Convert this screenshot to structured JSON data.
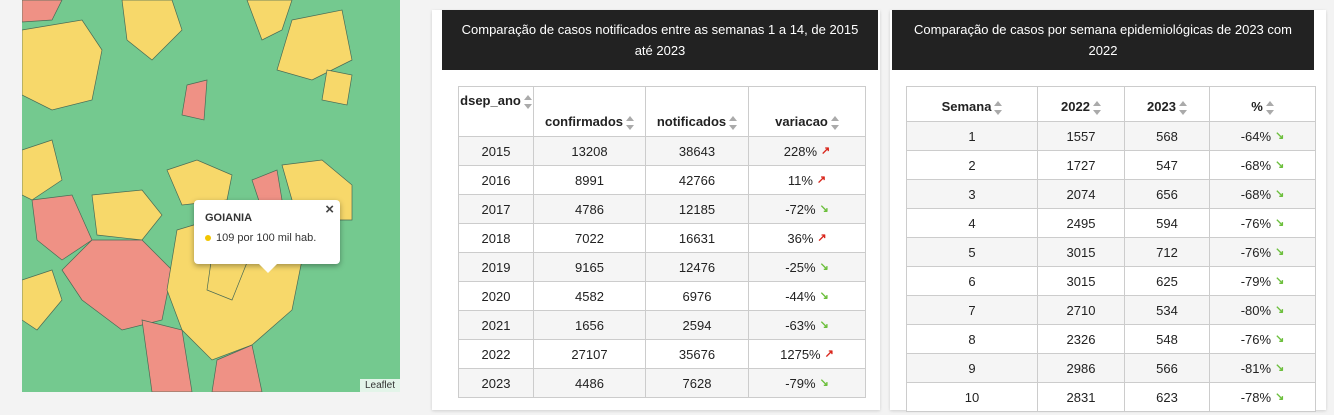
{
  "map": {
    "popup": {
      "title": "GOIANIA",
      "text": "109 por 100 mil hab."
    },
    "attribution": "Leaflet"
  },
  "table1": {
    "title": "Comparação de casos notificados entre as semanas 1 a 14, de 2015 até 2023",
    "headers": [
      "dsep_ano",
      "confirmados",
      "notificados",
      "variacao"
    ],
    "rows": [
      [
        2015,
        13208,
        38643,
        "228%"
      ],
      [
        2016,
        8991,
        42766,
        "11%"
      ],
      [
        2017,
        4786,
        12185,
        "-72%"
      ],
      [
        2018,
        7022,
        16631,
        "36%"
      ],
      [
        2019,
        9165,
        12476,
        "-25%"
      ],
      [
        2020,
        4582,
        6976,
        "-44%"
      ],
      [
        2021,
        1656,
        2594,
        "-63%"
      ],
      [
        2022,
        27107,
        35676,
        "1275%"
      ],
      [
        2023,
        4486,
        7628,
        "-79%"
      ]
    ]
  },
  "table2": {
    "title": "Comparação de casos por semana epidemiológicas de 2023 com 2022",
    "headers": [
      "Semana",
      "2022",
      "2023",
      "%"
    ],
    "rows": [
      [
        1,
        1557,
        568,
        "-64%"
      ],
      [
        2,
        1727,
        547,
        "-68%"
      ],
      [
        3,
        2074,
        656,
        "-68%"
      ],
      [
        4,
        2495,
        594,
        "-76%"
      ],
      [
        5,
        3015,
        712,
        "-76%"
      ],
      [
        6,
        3015,
        625,
        "-79%"
      ],
      [
        7,
        2710,
        534,
        "-80%"
      ],
      [
        8,
        2326,
        548,
        "-76%"
      ],
      [
        9,
        2986,
        566,
        "-81%"
      ],
      [
        10,
        2831,
        623,
        "-78%"
      ]
    ]
  }
}
